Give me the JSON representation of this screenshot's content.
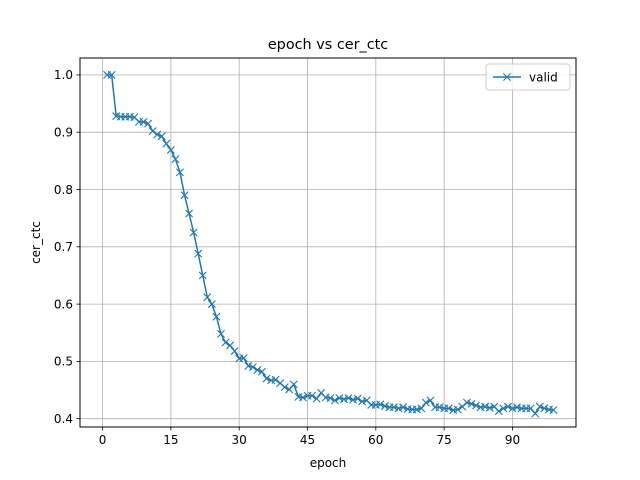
{
  "chart_data": {
    "type": "line",
    "title": "epoch vs cer_ctc",
    "xlabel": "epoch",
    "ylabel": "cer_ctc",
    "xlim": [
      -4.95,
      103.95
    ],
    "ylim": [
      0.3855,
      1.0295
    ],
    "xticks": [
      0,
      15,
      30,
      45,
      60,
      75,
      90
    ],
    "xtick_labels": [
      "0",
      "15",
      "30",
      "45",
      "60",
      "75",
      "90"
    ],
    "yticks": [
      0.4,
      0.5,
      0.6,
      0.7,
      0.8,
      0.9,
      1.0
    ],
    "ytick_labels": [
      "0.4",
      "0.5",
      "0.6",
      "0.7",
      "0.8",
      "0.9",
      "1.0"
    ],
    "grid": true,
    "legend_position": "upper right",
    "series": [
      {
        "name": "valid",
        "color": "#1f77b4",
        "marker": "x",
        "x": [
          1,
          2,
          3,
          4,
          5,
          6,
          7,
          8,
          9,
          10,
          11,
          12,
          13,
          14,
          15,
          16,
          17,
          18,
          19,
          20,
          21,
          22,
          23,
          24,
          25,
          26,
          27,
          28,
          29,
          30,
          31,
          32,
          33,
          34,
          35,
          36,
          37,
          38,
          39,
          40,
          41,
          42,
          43,
          44,
          45,
          46,
          47,
          48,
          49,
          50,
          51,
          52,
          53,
          54,
          55,
          56,
          57,
          58,
          59,
          60,
          61,
          62,
          63,
          64,
          65,
          66,
          67,
          68,
          69,
          70,
          71,
          72,
          73,
          74,
          75,
          76,
          77,
          78,
          79,
          80,
          81,
          82,
          83,
          84,
          85,
          86,
          87,
          88,
          89,
          90,
          91,
          92,
          93,
          94,
          95,
          96,
          97,
          98,
          99
        ],
        "y": [
          1.0,
          1.0,
          0.928,
          0.927,
          0.927,
          0.927,
          0.926,
          0.918,
          0.918,
          0.915,
          0.902,
          0.896,
          0.893,
          0.88,
          0.869,
          0.853,
          0.83,
          0.79,
          0.758,
          0.725,
          0.688,
          0.65,
          0.612,
          0.6,
          0.578,
          0.548,
          0.533,
          0.528,
          0.518,
          0.505,
          0.506,
          0.492,
          0.49,
          0.485,
          0.482,
          0.47,
          0.467,
          0.468,
          0.462,
          0.455,
          0.451,
          0.46,
          0.438,
          0.437,
          0.44,
          0.44,
          0.435,
          0.445,
          0.437,
          0.436,
          0.432,
          0.436,
          0.434,
          0.436,
          0.433,
          0.435,
          0.43,
          0.432,
          0.424,
          0.424,
          0.425,
          0.422,
          0.42,
          0.42,
          0.418,
          0.42,
          0.417,
          0.416,
          0.416,
          0.418,
          0.428,
          0.432,
          0.42,
          0.42,
          0.418,
          0.418,
          0.415,
          0.416,
          0.421,
          0.428,
          0.426,
          0.423,
          0.42,
          0.421,
          0.419,
          0.421,
          0.413,
          0.418,
          0.421,
          0.418,
          0.42,
          0.418,
          0.418,
          0.418,
          0.409,
          0.421,
          0.418,
          0.416,
          0.415
        ]
      }
    ]
  }
}
